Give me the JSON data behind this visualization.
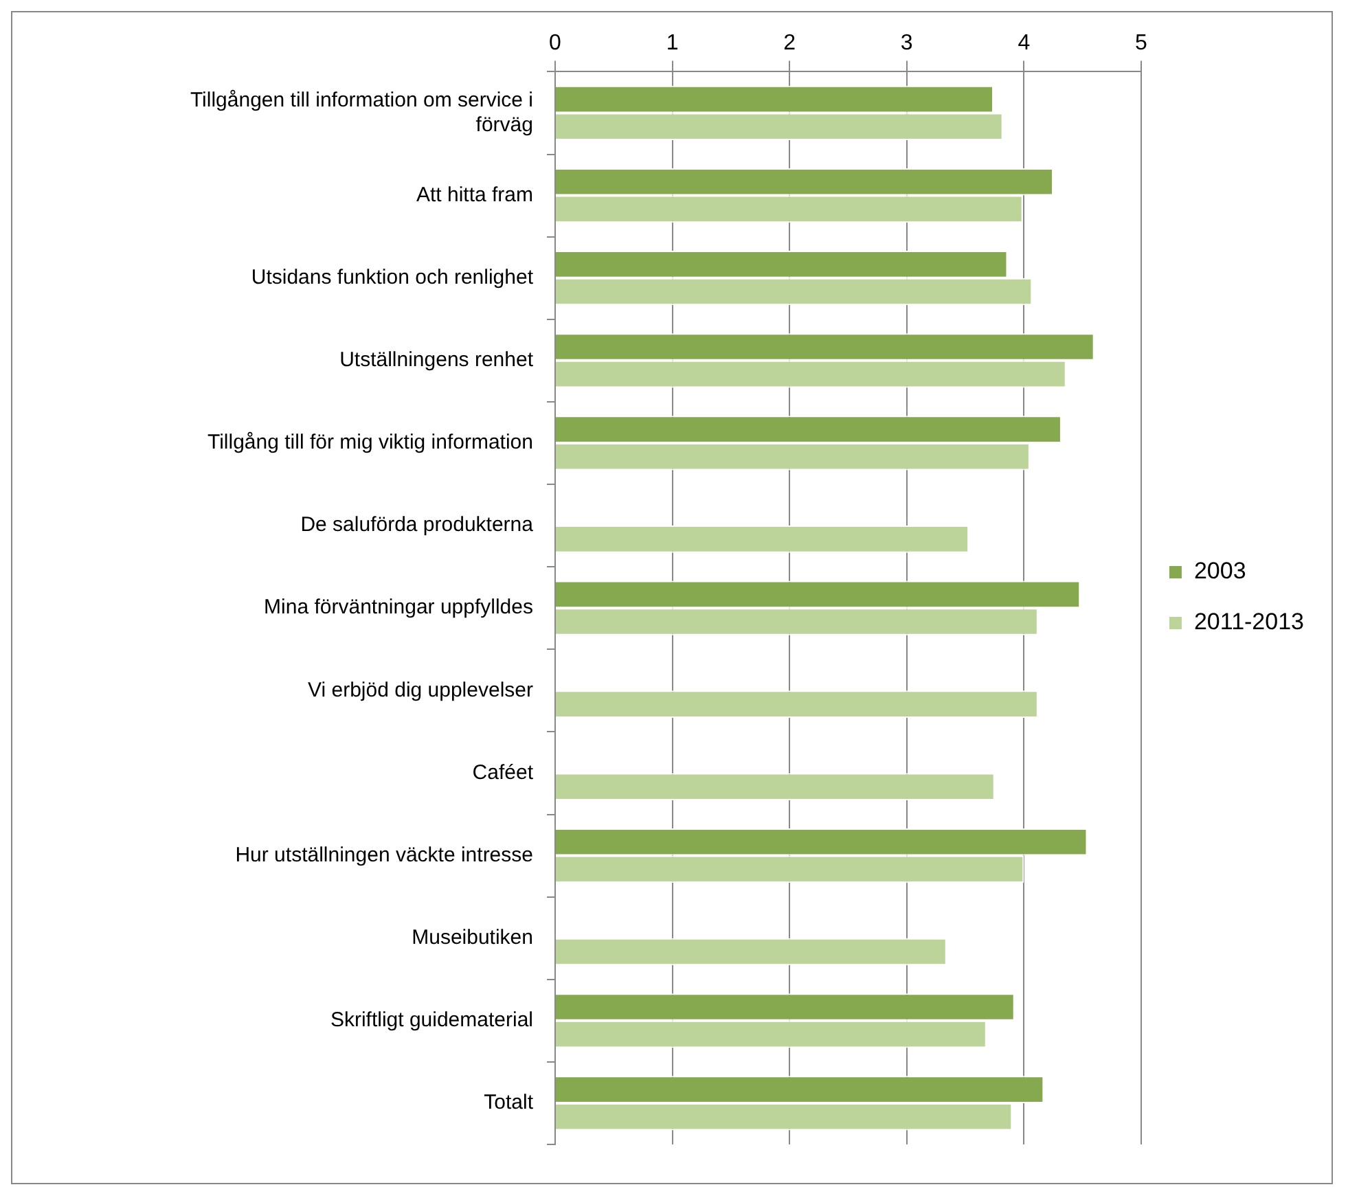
{
  "chart_data": {
    "type": "bar",
    "orientation": "horizontal",
    "categories": [
      "Tillgången till information om service i förväg",
      "Att hitta fram",
      "Utsidans funktion och renlighet",
      "Utställningens renhet",
      "Tillgång till för mig viktig information",
      "De saluförda produkterna",
      "Mina förväntningar uppfylldes",
      "Vi erbjöd dig upplevelser",
      "Caféet",
      "Hur utställningen väckte intresse",
      "Museibutiken",
      "Skriftligt guidematerial",
      "Totalt"
    ],
    "series": [
      {
        "name": "2003",
        "color": "#86a84e",
        "values": [
          3.74,
          4.25,
          3.86,
          4.6,
          4.32,
          null,
          4.48,
          null,
          null,
          4.54,
          null,
          3.92,
          4.17
        ]
      },
      {
        "name": "2011-2013",
        "color": "#bcd39a",
        "values": [
          3.82,
          3.99,
          4.07,
          4.36,
          4.05,
          3.53,
          4.12,
          4.12,
          3.75,
          4.0,
          3.34,
          3.68,
          3.9
        ]
      }
    ],
    "xlim": [
      0,
      5
    ],
    "xticks": [
      0,
      1,
      2,
      3,
      4,
      5
    ],
    "grid": "x",
    "legend": "right"
  }
}
